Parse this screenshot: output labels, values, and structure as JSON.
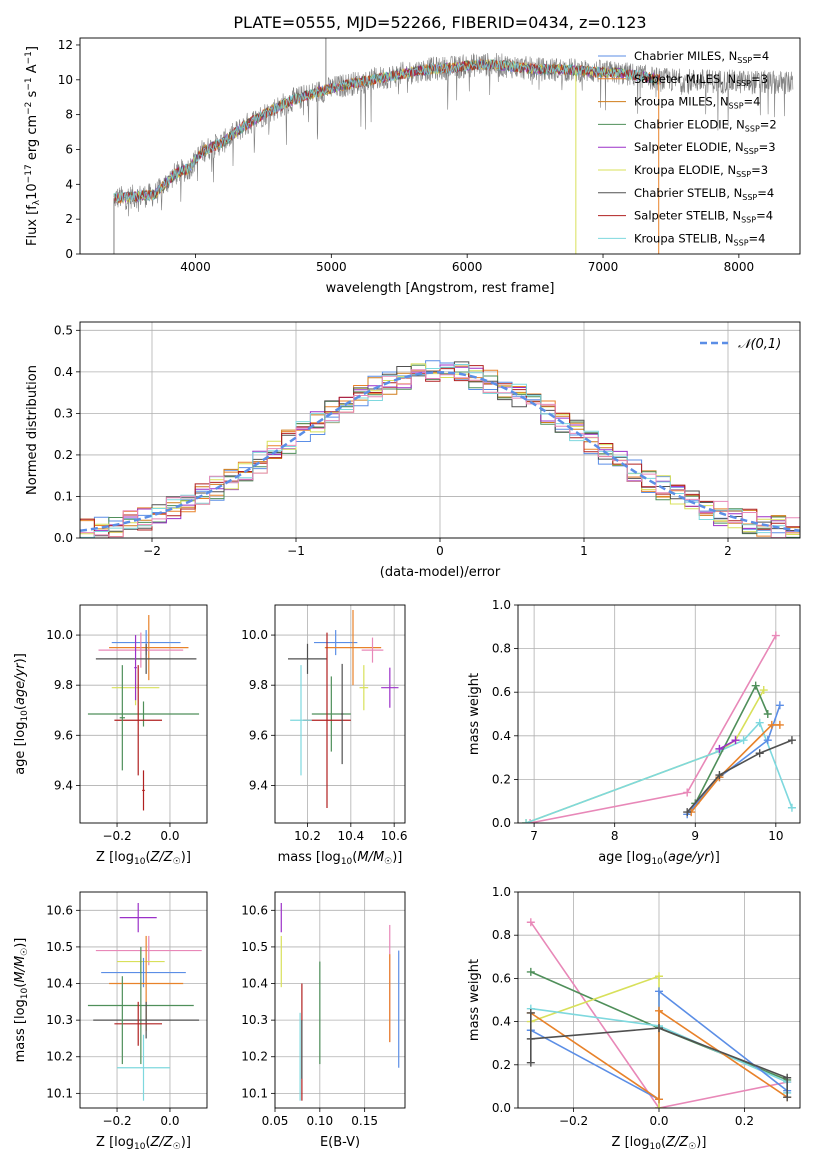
{
  "figure": {
    "title": "PLATE=0555, MJD=52266, FIBERID=0434, z=0.123"
  },
  "colors": [
    "#5b8ee6",
    "#e8822a",
    "#d07d1a",
    "#4f8f5a",
    "#9b30c8",
    "#d8e05a",
    "#505050",
    "#b02020",
    "#7ed8de",
    "#e888b8"
  ],
  "chart_data": [
    {
      "id": "spectrum",
      "type": "line",
      "xlabel": "wavelength [Angstrom, rest frame]",
      "ylabel": "Flux [f_λ 10^-17 erg cm^-2 s^-1 A^-1]",
      "xlim": [
        3150,
        8450
      ],
      "ylim": [
        0,
        12.4
      ],
      "xticks": [
        4000,
        5000,
        6000,
        7000,
        8000
      ],
      "yticks": [
        0,
        2,
        4,
        6,
        8,
        10,
        12
      ],
      "legend_placement": "upper-right",
      "legend": [
        {
          "label": "Chabrier MILES, N",
          "sub": "SSP",
          "value": "=4",
          "color": "#5b8ee6"
        },
        {
          "label": "Salpeter MILES, N",
          "sub": "SSP",
          "value": "=3",
          "color": "#e8822a"
        },
        {
          "label": "Kroupa MILES, N",
          "sub": "SSP",
          "value": "=4",
          "color": "#d07d1a"
        },
        {
          "label": "Chabrier ELODIE, N",
          "sub": "SSP",
          "value": "=2",
          "color": "#4f8f5a"
        },
        {
          "label": "Salpeter ELODIE, N",
          "sub": "SSP",
          "value": "=3",
          "color": "#9b30c8"
        },
        {
          "label": "Kroupa ELODIE, N",
          "sub": "SSP",
          "value": "=3",
          "color": "#d8e05a"
        },
        {
          "label": "Chabrier STELIB, N",
          "sub": "SSP",
          "value": "=4",
          "color": "#505050"
        },
        {
          "label": "Salpeter STELIB, N",
          "sub": "SSP",
          "value": "=4",
          "color": "#b02020"
        },
        {
          "label": "Kroupa STELIB, N",
          "sub": "SSP",
          "value": "=4",
          "color": "#7ed8de"
        }
      ],
      "continuum": [
        [
          3400,
          3.2
        ],
        [
          3550,
          3.3
        ],
        [
          3700,
          3.4
        ],
        [
          3850,
          4.6
        ],
        [
          3950,
          4.9
        ],
        [
          4050,
          5.9
        ],
        [
          4200,
          6.4
        ],
        [
          4350,
          7.3
        ],
        [
          4500,
          8.0
        ],
        [
          4700,
          8.8
        ],
        [
          4900,
          9.3
        ],
        [
          5100,
          9.7
        ],
        [
          5300,
          10.0
        ],
        [
          5500,
          10.3
        ],
        [
          5700,
          10.6
        ],
        [
          5900,
          10.7
        ],
        [
          6100,
          10.9
        ],
        [
          6300,
          10.8
        ],
        [
          6500,
          10.6
        ],
        [
          6700,
          10.6
        ],
        [
          6900,
          10.5
        ],
        [
          7100,
          10.4
        ],
        [
          7300,
          10.2
        ],
        [
          7420,
          10.0
        ]
      ],
      "spikes": [
        [
          4960,
          12.4
        ],
        [
          6800,
          0
        ],
        [
          7410,
          0
        ],
        [
          3400,
          0
        ]
      ]
    },
    {
      "id": "residuals",
      "type": "histogram",
      "xlabel": "(data-model)/error",
      "ylabel": "Normed distribution",
      "xlim": [
        -2.5,
        2.5
      ],
      "ylim": [
        0,
        0.52
      ],
      "xticks": [
        -2,
        -1,
        0,
        1,
        2
      ],
      "yticks": [
        0.0,
        0.1,
        0.2,
        0.3,
        0.4,
        0.5
      ],
      "legend_label": "𝒩(0,1)",
      "gaussian_color": "#5b8ee6",
      "bin_width": 0.1
    },
    {
      "id": "age_vs_Z",
      "type": "errorbar",
      "xlabel": "Z [log10(Z/Z☉)]",
      "ylabel": "age  [log10(age/yr)]",
      "xlim": [
        -0.34,
        0.14
      ],
      "ylim": [
        9.25,
        10.12
      ],
      "xticks": [
        -0.2,
        0.0
      ],
      "yticks": [
        9.4,
        9.6,
        9.8,
        10.0
      ],
      "points": [
        {
          "x": -0.09,
          "y": 9.97,
          "xerr": 0.13,
          "yerr": 0.05,
          "color": "#5b8ee6"
        },
        {
          "x": -0.08,
          "y": 9.95,
          "xerr": 0.15,
          "yerr": 0.13,
          "color": "#e8822a"
        },
        {
          "x": -0.11,
          "y": 9.94,
          "xerr": 0.16,
          "yerr": 0.07,
          "color": "#e888b8"
        },
        {
          "x": -0.09,
          "y": 9.905,
          "xerr": 0.19,
          "yerr": 0.06,
          "color": "#505050"
        },
        {
          "x": -0.13,
          "y": 9.79,
          "xerr": 0.09,
          "yerr": 0.07,
          "color": "#d8e05a"
        },
        {
          "x": -0.1,
          "y": 9.685,
          "xerr": 0.21,
          "yerr": 0.05,
          "color": "#4f8f5a"
        },
        {
          "x": -0.12,
          "y": 9.66,
          "xerr": 0.09,
          "yerr": 0.22,
          "color": "#b02020"
        },
        {
          "x": -0.18,
          "y": 9.67,
          "xerr": 0.01,
          "yerr": 0.21,
          "color": "#4f8f5a"
        },
        {
          "x": -0.1,
          "y": 9.38,
          "xerr": 0.005,
          "yerr": 0.08,
          "color": "#b02020"
        },
        {
          "x": -0.13,
          "y": 9.87,
          "xerr": 0.005,
          "yerr": 0.13,
          "color": "#9b30c8"
        }
      ]
    },
    {
      "id": "age_vs_mass",
      "type": "errorbar",
      "xlabel": "mass [log10(M/M☉)]",
      "ylabel": "",
      "xlim": [
        10.05,
        10.65
      ],
      "ylim": [
        9.25,
        10.12
      ],
      "xticks": [
        10.2,
        10.4,
        10.6
      ],
      "yticks": [
        9.4,
        9.6,
        9.8,
        10.0
      ],
      "points": [
        {
          "x": 10.33,
          "y": 9.97,
          "xerr": 0.1,
          "yerr": 0.05,
          "color": "#5b8ee6"
        },
        {
          "x": 10.41,
          "y": 9.95,
          "xerr": 0.13,
          "yerr": 0.15,
          "color": "#e8822a"
        },
        {
          "x": 10.5,
          "y": 9.94,
          "xerr": 0.05,
          "yerr": 0.05,
          "color": "#e888b8"
        },
        {
          "x": 10.2,
          "y": 9.905,
          "xerr": 0.09,
          "yerr": 0.06,
          "color": "#505050"
        },
        {
          "x": 10.46,
          "y": 9.79,
          "xerr": 0.02,
          "yerr": 0.09,
          "color": "#d8e05a"
        },
        {
          "x": 10.31,
          "y": 9.685,
          "xerr": 0.09,
          "yerr": 0.15,
          "color": "#4f8f5a"
        },
        {
          "x": 10.29,
          "y": 9.66,
          "xerr": 0.11,
          "yerr": 0.35,
          "color": "#b02020"
        },
        {
          "x": 10.17,
          "y": 9.66,
          "xerr": 0.05,
          "yerr": 0.22,
          "color": "#7ed8de"
        },
        {
          "x": 10.58,
          "y": 9.79,
          "xerr": 0.04,
          "yerr": 0.08,
          "color": "#9b30c8"
        },
        {
          "x": 10.36,
          "y": 9.685,
          "xerr": 0.005,
          "yerr": 0.2,
          "color": "#505050"
        }
      ]
    },
    {
      "id": "weight_vs_age",
      "type": "line",
      "xlabel": "age  [log10(age/yr)]",
      "ylabel": "mass weight",
      "xlim": [
        6.8,
        10.3
      ],
      "ylim": [
        0.0,
        1.0
      ],
      "xticks": [
        7,
        8,
        9,
        10
      ],
      "yticks": [
        0.0,
        0.2,
        0.4,
        0.6,
        0.8,
        1.0
      ],
      "series": [
        {
          "color": "#e888b8",
          "points": [
            [
              6.95,
              0.0
            ],
            [
              8.9,
              0.14
            ],
            [
              10.0,
              0.86
            ]
          ]
        },
        {
          "color": "#d8e05a",
          "points": [
            [
              6.9,
              0.0
            ],
            [
              9.3,
              0.33
            ],
            [
              9.5,
              0.38
            ],
            [
              9.85,
              0.61
            ]
          ]
        },
        {
          "color": "#7ed8de",
          "points": [
            [
              6.9,
              0.0
            ],
            [
              9.3,
              0.33
            ],
            [
              9.6,
              0.38
            ],
            [
              9.8,
              0.46
            ],
            [
              10.2,
              0.07
            ]
          ]
        },
        {
          "color": "#4f8f5a",
          "points": [
            [
              9.0,
              0.09
            ],
            [
              9.75,
              0.63
            ],
            [
              9.9,
              0.5
            ]
          ]
        },
        {
          "color": "#5b8ee6",
          "points": [
            [
              8.9,
              0.04
            ],
            [
              9.3,
              0.21
            ],
            [
              9.9,
              0.38
            ],
            [
              10.05,
              0.54
            ]
          ]
        },
        {
          "color": "#e8822a",
          "points": [
            [
              8.95,
              0.05
            ],
            [
              9.3,
              0.21
            ],
            [
              9.95,
              0.45
            ],
            [
              10.05,
              0.45
            ]
          ]
        },
        {
          "color": "#505050",
          "points": [
            [
              8.9,
              0.05
            ],
            [
              9.3,
              0.22
            ],
            [
              9.8,
              0.32
            ],
            [
              10.2,
              0.38
            ]
          ]
        },
        {
          "color": "#9b30c8",
          "points": [
            [
              9.3,
              0.34
            ],
            [
              9.5,
              0.38
            ]
          ]
        }
      ]
    },
    {
      "id": "mass_vs_Z",
      "type": "errorbar",
      "xlabel": "Z [log10(Z/Z☉)]",
      "ylabel": "mass [log10(M/M☉)]",
      "xlim": [
        -0.34,
        0.14
      ],
      "ylim": [
        10.06,
        10.65
      ],
      "xticks": [
        -0.2,
        0.0
      ],
      "yticks": [
        10.1,
        10.2,
        10.3,
        10.4,
        10.5,
        10.6
      ],
      "points": [
        {
          "x": -0.12,
          "y": 10.58,
          "xerr": 0.07,
          "yerr": 0.04,
          "color": "#9b30c8"
        },
        {
          "x": -0.08,
          "y": 10.49,
          "xerr": 0.2,
          "yerr": 0.04,
          "color": "#e888b8"
        },
        {
          "x": -0.11,
          "y": 10.46,
          "xerr": 0.09,
          "yerr": 0.03,
          "color": "#d8e05a"
        },
        {
          "x": -0.1,
          "y": 10.43,
          "xerr": 0.16,
          "yerr": 0.04,
          "color": "#5b8ee6"
        },
        {
          "x": -0.09,
          "y": 10.4,
          "xerr": 0.14,
          "yerr": 0.13,
          "color": "#e8822a"
        },
        {
          "x": -0.11,
          "y": 10.34,
          "xerr": 0.2,
          "yerr": 0.16,
          "color": "#4f8f5a"
        },
        {
          "x": -0.09,
          "y": 10.3,
          "xerr": 0.2,
          "yerr": 0.05,
          "color": "#505050"
        },
        {
          "x": -0.12,
          "y": 10.29,
          "xerr": 0.09,
          "yerr": 0.06,
          "color": "#b02020"
        },
        {
          "x": -0.1,
          "y": 10.17,
          "xerr": 0.1,
          "yerr": 0.09,
          "color": "#7ed8de"
        },
        {
          "x": -0.18,
          "y": 10.3,
          "xerr": 0.005,
          "yerr": 0.12,
          "color": "#4f8f5a"
        }
      ]
    },
    {
      "id": "mass_vs_ebv",
      "type": "errorbar",
      "xlabel": "E(B-V)",
      "ylabel": "",
      "xlim": [
        0.05,
        0.195
      ],
      "ylim": [
        10.06,
        10.65
      ],
      "xticks": [
        0.05,
        0.1,
        0.15
      ],
      "yticks": [
        10.1,
        10.2,
        10.3,
        10.4,
        10.5,
        10.6
      ],
      "points": [
        {
          "x": 0.057,
          "y": 10.58,
          "xerr": 0.0,
          "yerr": 0.04,
          "color": "#9b30c8"
        },
        {
          "x": 0.057,
          "y": 10.46,
          "xerr": 0.0,
          "yerr": 0.07,
          "color": "#d8e05a"
        },
        {
          "x": 0.078,
          "y": 10.2,
          "xerr": 0.0,
          "yerr": 0.12,
          "color": "#7ed8de"
        },
        {
          "x": 0.08,
          "y": 10.24,
          "xerr": 0.0,
          "yerr": 0.16,
          "color": "#b02020"
        },
        {
          "x": 0.08,
          "y": 10.22,
          "xerr": 0.0,
          "yerr": 0.08,
          "color": "#505050"
        },
        {
          "x": 0.1,
          "y": 10.32,
          "xerr": 0.0,
          "yerr": 0.14,
          "color": "#4f8f5a"
        },
        {
          "x": 0.178,
          "y": 10.4,
          "xerr": 0.0,
          "yerr": 0.16,
          "color": "#e888b8"
        },
        {
          "x": 0.178,
          "y": 10.36,
          "xerr": 0.0,
          "yerr": 0.12,
          "color": "#e8822a"
        },
        {
          "x": 0.188,
          "y": 10.33,
          "xerr": 0.0,
          "yerr": 0.16,
          "color": "#5b8ee6"
        }
      ]
    },
    {
      "id": "weight_vs_Z",
      "type": "line",
      "xlabel": "Z [log10(Z/Z☉)]",
      "ylabel": "mass weight",
      "xlim": [
        -0.33,
        0.33
      ],
      "ylim": [
        0.0,
        1.0
      ],
      "xticks": [
        -0.2,
        0.0,
        0.2
      ],
      "yticks": [
        0.0,
        0.2,
        0.4,
        0.6,
        0.8,
        1.0
      ],
      "series": [
        {
          "color": "#e888b8",
          "points": [
            [
              -0.3,
              0.86
            ],
            [
              0.0,
              0.0
            ],
            [
              0.3,
              0.12
            ]
          ]
        },
        {
          "color": "#4f8f5a",
          "points": [
            [
              -0.3,
              0.63
            ],
            [
              0.0,
              0.37
            ],
            [
              0.3,
              0.13
            ]
          ]
        },
        {
          "color": "#d8e05a",
          "points": [
            [
              -0.3,
              0.4
            ],
            [
              0.0,
              0.61
            ],
            [
              0.0,
              0.0
            ]
          ]
        },
        {
          "color": "#7ed8de",
          "points": [
            [
              -0.3,
              0.46
            ],
            [
              0.0,
              0.38
            ],
            [
              0.3,
              0.12
            ],
            [
              0.3,
              0.07
            ]
          ]
        },
        {
          "color": "#5b8ee6",
          "points": [
            [
              -0.3,
              0.36
            ],
            [
              0.0,
              0.04
            ],
            [
              0.0,
              0.54
            ],
            [
              0.3,
              0.08
            ]
          ]
        },
        {
          "color": "#e8822a",
          "points": [
            [
              -0.3,
              0.44
            ],
            [
              0.0,
              0.04
            ],
            [
              0.0,
              0.45
            ],
            [
              0.3,
              0.05
            ]
          ]
        },
        {
          "color": "#505050",
          "points": [
            [
              -0.3,
              0.32
            ],
            [
              0.0,
              0.37
            ],
            [
              0.3,
              0.14
            ],
            [
              0.3,
              0.05
            ]
          ]
        },
        {
          "color": "#505050",
          "points": [
            [
              -0.3,
              0.21
            ],
            [
              -0.3,
              0.44
            ]
          ]
        }
      ]
    }
  ]
}
